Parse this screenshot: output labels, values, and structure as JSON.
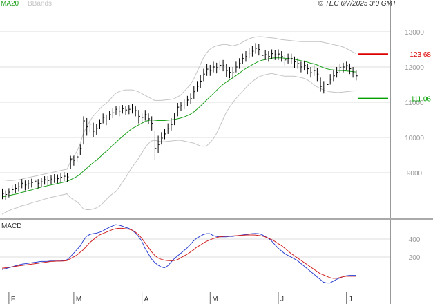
{
  "chart_data": [
    {
      "type": "ohlc",
      "source": "© TEC 6/7/2025 3:0 GMT",
      "categories": [
        null,
        null,
        "F",
        null,
        null,
        null,
        null,
        null,
        null,
        null,
        null,
        null,
        null,
        null,
        null,
        null,
        null,
        null,
        null,
        null,
        null,
        null,
        "M",
        null,
        null,
        null,
        null,
        null,
        null,
        null,
        null,
        null,
        null,
        null,
        null,
        null,
        null,
        null,
        null,
        null,
        null,
        null,
        null,
        "A",
        null,
        null,
        null,
        null,
        null,
        null,
        null,
        null,
        null,
        null,
        null,
        null,
        null,
        null,
        null,
        null,
        null,
        null,
        null,
        null,
        "M",
        null,
        null,
        null,
        null,
        null,
        null,
        null,
        null,
        null,
        null,
        null,
        null,
        null,
        null,
        null,
        null,
        null,
        null,
        null,
        null,
        "J",
        null,
        null,
        null,
        null,
        null,
        null,
        null,
        null,
        null,
        null,
        null,
        null,
        null,
        null,
        null,
        null,
        null,
        null,
        null,
        null,
        "J",
        null,
        null,
        null
      ],
      "high": [
        8550,
        8500,
        8560,
        8650,
        8680,
        8720,
        8820,
        8780,
        8790,
        8830,
        8870,
        8820,
        8850,
        8900,
        8900,
        8930,
        8960,
        8950,
        8980,
        9020,
        9000,
        9480,
        9480,
        9560,
        9800,
        10600,
        10550,
        10500,
        10420,
        10380,
        10520,
        10680,
        10650,
        10760,
        10820,
        10900,
        10880,
        10920,
        10900,
        10920,
        10950,
        10880,
        10780,
        10700,
        10780,
        10680,
        10600,
        10200,
        10050,
        10150,
        10250,
        10400,
        10550,
        10700,
        10980,
        11020,
        11080,
        11180,
        11250,
        11450,
        11600,
        11780,
        11950,
        12080,
        12060,
        12150,
        12120,
        12180,
        12200,
        12080,
        12000,
        12000,
        12150,
        12250,
        12380,
        12450,
        12550,
        12600,
        12680,
        12650,
        12500,
        12480,
        12450,
        12500,
        12480,
        12500,
        12450,
        12350,
        12380,
        12380,
        12300,
        12250,
        12150,
        12180,
        12100,
        12000,
        12050,
        11980,
        11700,
        11600,
        11650,
        11800,
        11900,
        12000,
        12100,
        12120,
        12150,
        12100,
        12000,
        11900
      ],
      "low": [
        8250,
        8220,
        8300,
        8380,
        8420,
        8460,
        8560,
        8500,
        8540,
        8580,
        8620,
        8560,
        8600,
        8660,
        8640,
        8680,
        8710,
        8700,
        8720,
        8760,
        8740,
        9100,
        9200,
        9300,
        9500,
        9800,
        10050,
        10150,
        10000,
        10080,
        10250,
        10400,
        10350,
        10500,
        10550,
        10650,
        10600,
        10680,
        10640,
        10660,
        10680,
        10600,
        10400,
        10400,
        10480,
        10380,
        10200,
        9350,
        9550,
        9800,
        9950,
        10100,
        10200,
        10350,
        10600,
        10750,
        10800,
        10900,
        10950,
        11100,
        11300,
        11400,
        11600,
        11750,
        11750,
        11850,
        11820,
        11900,
        11880,
        11720,
        11680,
        11680,
        11850,
        11950,
        12080,
        12150,
        12250,
        12300,
        12380,
        12330,
        12150,
        12200,
        12150,
        12220,
        12200,
        12200,
        12150,
        12050,
        12100,
        12080,
        11980,
        11950,
        11850,
        11900,
        11800,
        11700,
        11750,
        11600,
        11300,
        11250,
        11350,
        11500,
        11600,
        11700,
        11830,
        11850,
        11900,
        11800,
        11700,
        11620
      ],
      "close": [
        8400,
        8380,
        8450,
        8520,
        8560,
        8600,
        8700,
        8650,
        8680,
        8720,
        8760,
        8700,
        8740,
        8800,
        8780,
        8820,
        8850,
        8830,
        8870,
        8900,
        8880,
        9390,
        9350,
        9450,
        9690,
        10470,
        10300,
        10380,
        10180,
        10250,
        10400,
        10570,
        10500,
        10650,
        10700,
        10800,
        10750,
        10820,
        10780,
        10800,
        10830,
        10760,
        10600,
        10570,
        10650,
        10530,
        10400,
        9690,
        9800,
        9980,
        10100,
        10250,
        10370,
        10500,
        10860,
        10900,
        10950,
        11060,
        11100,
        11300,
        11450,
        11600,
        11800,
        11940,
        11900,
        12000,
        11980,
        12050,
        12040,
        11900,
        11850,
        11840,
        12000,
        12100,
        12240,
        12300,
        12400,
        12450,
        12530,
        12500,
        12330,
        12350,
        12300,
        12380,
        12350,
        12370,
        12300,
        12200,
        12250,
        12240,
        12150,
        12100,
        12000,
        12050,
        11950,
        11840,
        11900,
        11800,
        11450,
        11400,
        11500,
        11650,
        11750,
        11850,
        11980,
        12000,
        12040,
        11950,
        11840,
        11750
      ],
      "bar_color": "#000000",
      "series": [
        {
          "name": "MA20",
          "color": "#1aa01a",
          "values": [
            8310,
            8330,
            8350,
            8370,
            8390,
            8410,
            8440,
            8460,
            8490,
            8510,
            8540,
            8560,
            8590,
            8610,
            8630,
            8650,
            8670,
            8690,
            8710,
            8730,
            8750,
            8800,
            8840,
            8890,
            8950,
            9040,
            9120,
            9200,
            9280,
            9350,
            9430,
            9520,
            9600,
            9680,
            9770,
            9850,
            9940,
            10020,
            10100,
            10180,
            10250,
            10300,
            10350,
            10400,
            10450,
            10480,
            10500,
            10490,
            10480,
            10480,
            10480,
            10490,
            10500,
            10510,
            10530,
            10550,
            10580,
            10620,
            10660,
            10720,
            10800,
            10880,
            10970,
            11060,
            11150,
            11240,
            11330,
            11420,
            11500,
            11570,
            11630,
            11690,
            11750,
            11820,
            11890,
            11950,
            12010,
            12060,
            12110,
            12160,
            12190,
            12210,
            12230,
            12250,
            12260,
            12260,
            12260,
            12250,
            12240,
            12230,
            12220,
            12200,
            12180,
            12160,
            12140,
            12110,
            12090,
            12060,
            12020,
            11980,
            11950,
            11930,
            11920,
            11910,
            11900,
            11900,
            11890,
            11880,
            11870,
            11860
          ]
        },
        {
          "name": "BBands",
          "color": "#c4c4c4",
          "upper": [
            8800,
            8790,
            8780,
            8780,
            8790,
            8800,
            8820,
            8840,
            8860,
            8880,
            8900,
            8920,
            8940,
            8960,
            8980,
            9000,
            9020,
            9040,
            9060,
            9080,
            9100,
            9300,
            9450,
            9600,
            9800,
            10100,
            10300,
            10450,
            10600,
            10700,
            10800,
            10900,
            10960,
            11050,
            11150,
            11250,
            11300,
            11330,
            11350,
            11350,
            11350,
            11330,
            11300,
            11250,
            11200,
            11150,
            11100,
            11050,
            11050,
            11050,
            11060,
            11070,
            11080,
            11100,
            11150,
            11200,
            11300,
            11400,
            11500,
            11650,
            11850,
            12050,
            12250,
            12400,
            12500,
            12560,
            12600,
            12620,
            12640,
            12640,
            12620,
            12600,
            12620,
            12650,
            12700,
            12750,
            12800,
            12830,
            12850,
            12860,
            12860,
            12850,
            12840,
            12830,
            12820,
            12800,
            12780,
            12770,
            12760,
            12750,
            12740,
            12730,
            12720,
            12720,
            12720,
            12720,
            12720,
            12720,
            12720,
            12700,
            12680,
            12660,
            12640,
            12620,
            12600,
            12570,
            12530,
            12480,
            12430,
            12380
          ],
          "lower": [
            7820,
            7870,
            7920,
            7960,
            7990,
            8020,
            8060,
            8080,
            8110,
            8140,
            8170,
            8190,
            8220,
            8250,
            8270,
            8300,
            8320,
            8340,
            8360,
            8380,
            8400,
            8300,
            8230,
            8180,
            8100,
            7980,
            7950,
            7950,
            7970,
            8000,
            8050,
            8130,
            8230,
            8320,
            8400,
            8460,
            8580,
            8720,
            8850,
            9000,
            9150,
            9270,
            9400,
            9550,
            9700,
            9820,
            9900,
            9920,
            9900,
            9880,
            9880,
            9890,
            9900,
            9910,
            9920,
            9920,
            9900,
            9880,
            9860,
            9840,
            9800,
            9760,
            9750,
            9760,
            9850,
            9950,
            10100,
            10300,
            10500,
            10700,
            10850,
            10980,
            11100,
            11200,
            11300,
            11400,
            11500,
            11580,
            11650,
            11720,
            11750,
            11780,
            11800,
            11820,
            11800,
            11780,
            11760,
            11740,
            11740,
            11740,
            11740,
            11720,
            11700,
            11680,
            11640,
            11580,
            11500,
            11440,
            11390,
            11350,
            11320,
            11300,
            11290,
            11280,
            11280,
            11290,
            11300,
            11310,
            11320,
            11330
          ]
        }
      ],
      "annotations": [
        {
          "value": 12368,
          "label": "123 68",
          "color": "#dd0000"
        },
        {
          "value": 11106,
          "label": "111 06",
          "color": "#00a000"
        }
      ],
      "ylim": [
        7725,
        13902
      ],
      "yticks": [
        9000,
        10000,
        11000,
        12000,
        13000
      ],
      "grid": true
    },
    {
      "type": "line",
      "title": "MACD",
      "series": [
        {
          "color": "#2a3fd0",
          "values": [
            60,
            70,
            80,
            90,
            100,
            110,
            120,
            125,
            130,
            135,
            140,
            145,
            150,
            150,
            152,
            155,
            155,
            155,
            155,
            160,
            170,
            200,
            240,
            280,
            320,
            380,
            430,
            450,
            460,
            465,
            475,
            490,
            510,
            530,
            545,
            560,
            555,
            545,
            530,
            520,
            500,
            470,
            430,
            380,
            300,
            240,
            180,
            140,
            110,
            90,
            80,
            100,
            140,
            180,
            210,
            240,
            270,
            300,
            340,
            380,
            410,
            430,
            450,
            460,
            460,
            440,
            430,
            425,
            425,
            425,
            430,
            430,
            435,
            440,
            445,
            450,
            455,
            460,
            462,
            460,
            450,
            430,
            410,
            380,
            340,
            300,
            270,
            240,
            220,
            200,
            180,
            160,
            130,
            100,
            70,
            40,
            10,
            -20,
            -50,
            -80,
            -90,
            -90,
            -70,
            -50,
            -35,
            -20,
            -10,
            -5,
            -5,
            -5
          ]
        },
        {
          "color": "#d02020",
          "values": [
            75,
            80,
            85,
            90,
            95,
            100,
            105,
            110,
            115,
            120,
            125,
            130,
            135,
            140,
            145,
            150,
            152,
            154,
            154,
            155,
            160,
            180,
            200,
            220,
            250,
            280,
            320,
            360,
            390,
            420,
            445,
            460,
            475,
            490,
            505,
            515,
            520,
            520,
            515,
            510,
            500,
            480,
            450,
            410,
            360,
            310,
            260,
            220,
            190,
            175,
            165,
            160,
            158,
            160,
            170,
            190,
            210,
            230,
            255,
            280,
            310,
            330,
            355,
            375,
            390,
            405,
            415,
            425,
            430,
            432,
            433,
            435,
            437,
            440,
            442,
            445,
            446,
            446,
            445,
            440,
            435,
            425,
            410,
            395,
            375,
            350,
            330,
            300,
            270,
            240,
            215,
            190,
            165,
            140,
            115,
            90,
            65,
            40,
            15,
            0,
            -15,
            -30,
            -38,
            -38,
            -30,
            -20,
            -15,
            -15,
            -15,
            -15
          ]
        }
      ],
      "ylim": [
        -185,
        615
      ],
      "yticks": [
        200,
        400
      ],
      "grid": true
    }
  ]
}
